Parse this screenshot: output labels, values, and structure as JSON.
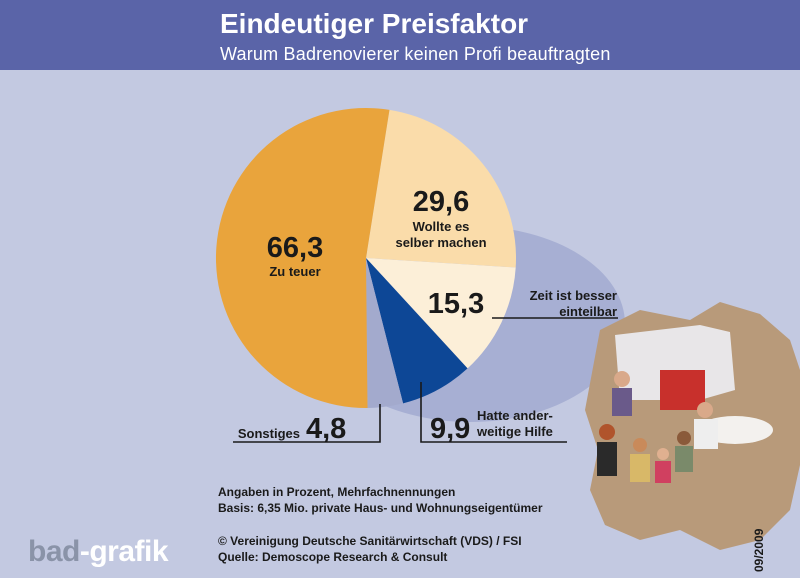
{
  "header": {
    "title": "Eindeutiger Preisfaktor",
    "subtitle": "Warum Badrenovierer keinen Profi beauftragten"
  },
  "chart_data": {
    "type": "pie",
    "title": "Eindeutiger Preisfaktor",
    "subtitle": "Warum Badrenovierer keinen Profi beauftragten",
    "unit": "Prozent",
    "slices": [
      {
        "label": "Zu teuer",
        "value": 66.3,
        "value_text": "66,3",
        "color": "#e9a43c"
      },
      {
        "label": "Wollte es selber machen",
        "value": 29.6,
        "value_text": "29,6",
        "color": "#fadcaa"
      },
      {
        "label": "Zeit ist besser einteilbar",
        "value": 15.3,
        "value_text": "15,3",
        "color": "#fcefd8"
      },
      {
        "label": "Hatte ander-weitige Hilfe",
        "value": 9.9,
        "value_text": "9,9",
        "color": "#0d4796"
      },
      {
        "label": "Sonstiges",
        "value": 4.8,
        "value_text": "4,8",
        "color": "#a3aacd"
      }
    ]
  },
  "labels": {
    "zu_teuer": "Zu teuer",
    "wollte_1": "Wollte es",
    "wollte_2": "selber machen",
    "zeit_1": "Zeit ist besser",
    "zeit_2": "einteilbar",
    "hatte_1": "Hatte ander-",
    "hatte_2": "weitige Hilfe",
    "sonstiges": "Sonstiges"
  },
  "notes": {
    "line1": "Angaben in Prozent, Mehrfachnennungen",
    "line2": "Basis: 6,35 Mio. private Haus- und Wohnungseigentümer",
    "line3": "© Vereinigung Deutsche Sanitärwirtschaft (VDS) / FSI",
    "line4": "Quelle: Demoscope Research & Consult"
  },
  "brand": {
    "part1": "bad",
    "part2": "-grafik"
  },
  "date": "09/2009",
  "colors": {
    "header": "#5a64a8",
    "background": "#c3c9e1"
  }
}
